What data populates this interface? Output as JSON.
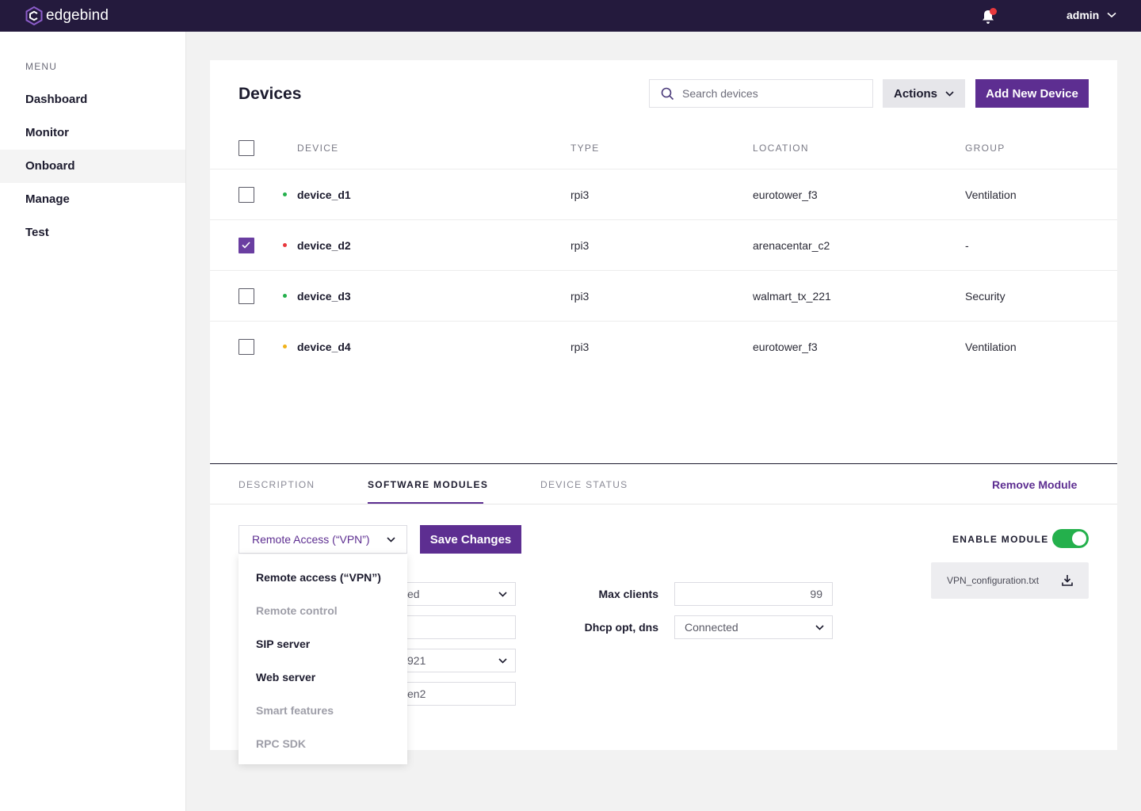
{
  "app": {
    "brand": "edgebind",
    "user": "admin",
    "colors": {
      "header": "#241a3d",
      "accent": "#5d2e91",
      "enabled": "#24b04c",
      "online": "#24b04c",
      "error": "#e8383d",
      "warning": "#f0b21a"
    }
  },
  "sidebar": {
    "menu_title": "MENU",
    "items": [
      {
        "label": "Dashboard"
      },
      {
        "label": "Monitor"
      },
      {
        "label": "Onboard",
        "active": true
      },
      {
        "label": "Manage"
      },
      {
        "label": "Test"
      }
    ]
  },
  "devices": {
    "title": "Devices",
    "search_placeholder": "Search devices",
    "actions_label": "Actions",
    "add_label": "Add New Device",
    "columns": {
      "device": "DEVICE",
      "type": "TYPE",
      "location": "LOCATION",
      "group": "GROUP"
    },
    "rows": [
      {
        "name": "device_d1",
        "type": "rpi3",
        "location": "eurotower_f3",
        "group": "Ventilation",
        "status": "online",
        "checked": false
      },
      {
        "name": "device_d2",
        "type": "rpi3",
        "location": "arenacentar_c2",
        "group": "-",
        "status": "error",
        "checked": true
      },
      {
        "name": "device_d3",
        "type": "rpi3",
        "location": "walmart_tx_221",
        "group": "Security",
        "status": "online",
        "checked": false
      },
      {
        "name": "device_d4",
        "type": "rpi3",
        "location": "eurotower_f3",
        "group": "Ventilation",
        "status": "warning",
        "checked": false
      }
    ]
  },
  "panel": {
    "tabs": [
      {
        "label": "DESCRIPTION"
      },
      {
        "label": "SOFTWARE MODULES",
        "active": true
      },
      {
        "label": "DEVICE STATUS"
      }
    ],
    "remove_label": "Remove Module",
    "module_select": "Remote Access (“VPN”)",
    "save_label": "Save Changes",
    "enable_label": "ENABLE MODULE",
    "enabled": true,
    "file_name": "VPN_configuration.txt",
    "left_fields": [
      {
        "value": "ed"
      },
      {
        "value": ""
      },
      {
        "value": "921"
      },
      {
        "value": "en2"
      }
    ],
    "right_fields": [
      {
        "label": "Max clients",
        "value": "99"
      },
      {
        "label": "Dhcp opt, dns",
        "value": "Connected"
      }
    ],
    "dropdown_options": [
      {
        "label": "Remote access (“VPN”)",
        "enabled": true
      },
      {
        "label": "Remote control",
        "enabled": false
      },
      {
        "label": "SIP server",
        "enabled": true
      },
      {
        "label": "Web server",
        "enabled": true
      },
      {
        "label": "Smart features",
        "enabled": false
      },
      {
        "label": "RPC SDK",
        "enabled": false
      }
    ]
  }
}
